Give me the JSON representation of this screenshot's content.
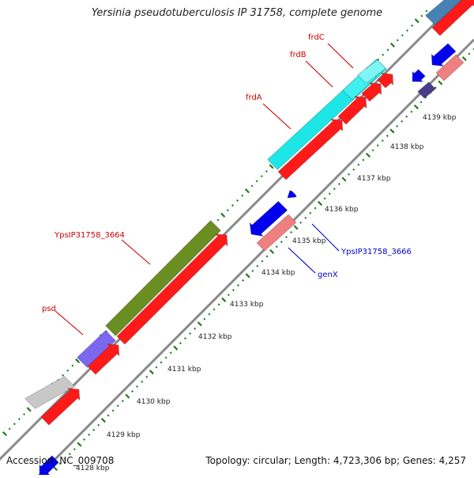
{
  "title": "Yersinia pseudotuberculosis IP 31758, complete genome",
  "footer": {
    "accession": "Accession: NC_009708",
    "summary": "Topology: circular; Length: 4,723,306 bp; Genes: 4,257"
  },
  "colors": {
    "background": "#ffffff",
    "backbone": "#8a8a8a",
    "tick": "#1e7a1e",
    "cds": "#ff1a1a",
    "gene_label": "#cc0000",
    "gene_label_minus": "#0000cc",
    "kbp_label": "#222222"
  },
  "scale_labels": [
    {
      "text": "4128 kbp",
      "kbp": 4128
    },
    {
      "text": "4129 kbp",
      "kbp": 4129
    },
    {
      "text": "4130 kbp",
      "kbp": 4130
    },
    {
      "text": "4131 kbp",
      "kbp": 4131
    },
    {
      "text": "4132 kbp",
      "kbp": 4132
    },
    {
      "text": "4133 kbp",
      "kbp": 4133
    },
    {
      "text": "4134 kbp",
      "kbp": 4134
    },
    {
      "text": "4135 kbp",
      "kbp": 4135
    },
    {
      "text": "4136 kbp",
      "kbp": 4136
    },
    {
      "text": "4137 kbp",
      "kbp": 4137
    },
    {
      "text": "4138 kbp",
      "kbp": 4138
    },
    {
      "text": "4139 kbp",
      "kbp": 4139
    }
  ],
  "gene_labels": [
    {
      "text": "frdC",
      "strand": "+"
    },
    {
      "text": "frdB",
      "strand": "+"
    },
    {
      "text": "frdA",
      "strand": "+"
    },
    {
      "text": "YpsIP31758_3664",
      "strand": "+"
    },
    {
      "text": "psd",
      "strand": "+"
    },
    {
      "text": "YpsIP31758_3666",
      "strand": "-"
    },
    {
      "text": "genX",
      "strand": "-"
    }
  ]
}
